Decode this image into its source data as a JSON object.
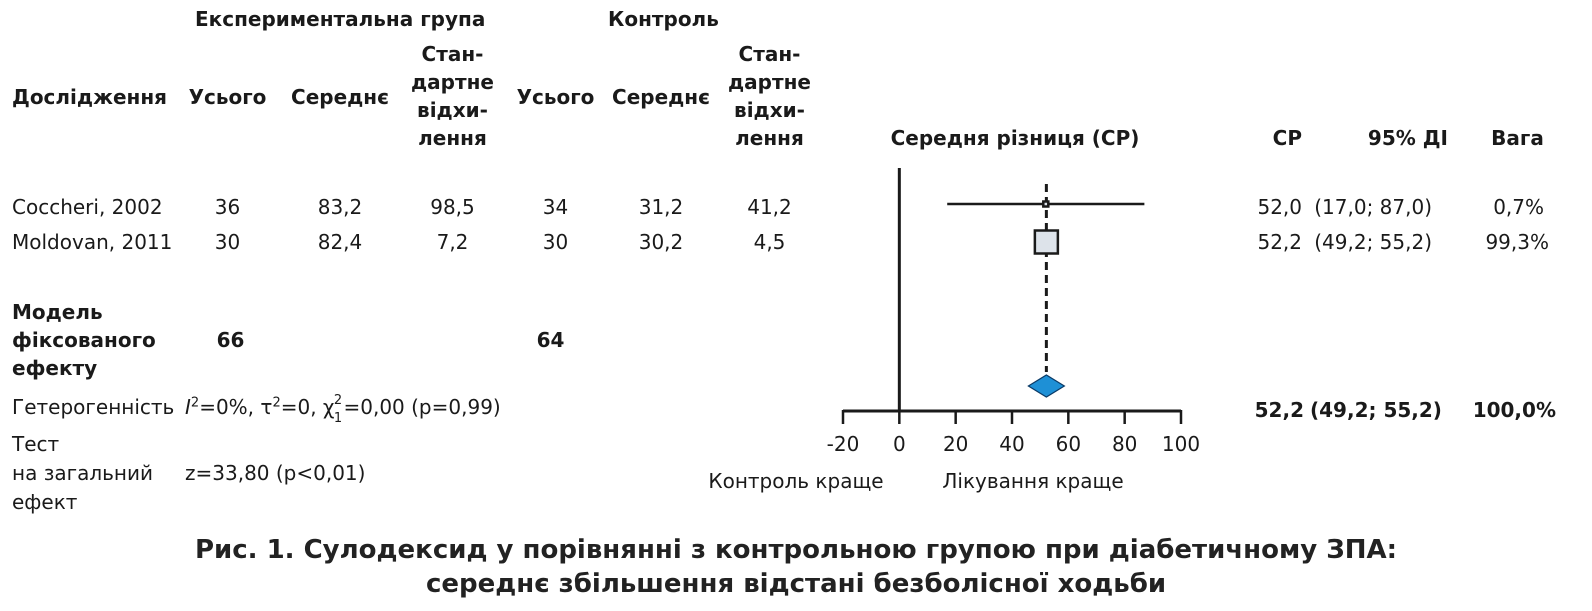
{
  "table": {
    "group_exp_label": "Експериментальна група",
    "group_ctrl_label": "Контроль",
    "col_study": "Дослідження",
    "col_total_exp": "Усього",
    "col_mean_exp": "Середнє",
    "col_sd_exp": [
      "Стан-",
      "дартне",
      "відхи-",
      "лення"
    ],
    "col_total_ctrl": "Усього",
    "col_mean_ctrl": "Середнє",
    "col_sd_ctrl": [
      "Стан-",
      "дартне",
      "відхи-",
      "лення"
    ],
    "col_plot": "Середня різниця (СР)",
    "col_md": "СР",
    "col_ci": "95% ДІ",
    "col_weight": "Вага",
    "rows": [
      {
        "study": "Coccheri, 2002",
        "total_exp": "36",
        "mean_exp": "83,2",
        "sd_exp": "98,5",
        "total_ctrl": "34",
        "mean_ctrl": "31,2",
        "sd_ctrl": "41,2",
        "md": "52,0",
        "ci": "(17,0; 87,0)",
        "weight": "0,7%"
      },
      {
        "study": "Moldovan, 2011",
        "total_exp": "30",
        "mean_exp": "82,4",
        "sd_exp": "7,2",
        "total_ctrl": "30",
        "mean_ctrl": "30,2",
        "sd_ctrl": "4,5",
        "md": "52,2",
        "ci": "(49,2; 55,2)",
        "weight": "99,3%"
      }
    ],
    "fixed_model": {
      "label": [
        "Модель",
        "фіксованого",
        "ефекту"
      ],
      "total_exp": "66",
      "total_ctrl": "64",
      "md": "52,2",
      "ci": "(49,2; 55,2)",
      "weight": "100,0%"
    },
    "heterogeneity": {
      "label": "Гетерогенність",
      "i2_symbol": "I",
      "i2_sup": "2",
      "i2_value": "=0%,",
      "tau_symbol": "τ",
      "tau_sup": "2",
      "tau_value": "=0,",
      "chi_symbol": "χ",
      "chi_sup": "2",
      "chi_sub": "1",
      "chi_value": "=0,00 (p=0,99)"
    },
    "overall_test": {
      "label": [
        "Тест",
        "на загальний",
        "ефект"
      ],
      "value": "z=33,80 (p<0,01)"
    }
  },
  "chart_data": {
    "type": "forest",
    "xlim": [
      -20,
      100
    ],
    "x_ticks": [
      -20,
      0,
      20,
      40,
      60,
      80,
      100
    ],
    "x_tick_labels": [
      "-20",
      "0",
      "20",
      "40",
      "60",
      "80",
      "100"
    ],
    "reference_line": 0,
    "summary_line": 52.2,
    "left_label": "Контроль краще",
    "right_label": "Лікування краще",
    "studies": [
      {
        "name": "Coccheri, 2002",
        "estimate": 52.0,
        "ci_low": 17.0,
        "ci_high": 87.0,
        "weight": 0.7
      },
      {
        "name": "Moldovan, 2011",
        "estimate": 52.2,
        "ci_low": 49.2,
        "ci_high": 55.2,
        "weight": 99.3
      }
    ],
    "pooled": {
      "estimate": 52.2,
      "ci_low": 49.2,
      "ci_high": 55.2
    },
    "colors": {
      "diamond": "#1e90d6",
      "box_fill": "#dde3ea",
      "line": "#1a1a1a"
    }
  },
  "caption": {
    "line1": "Рис. 1. Сулодексид у порівнянні з контрольною групою при діабетичному ЗПА:",
    "line2": "середнє збільшення відстані безболісної ходьби"
  }
}
